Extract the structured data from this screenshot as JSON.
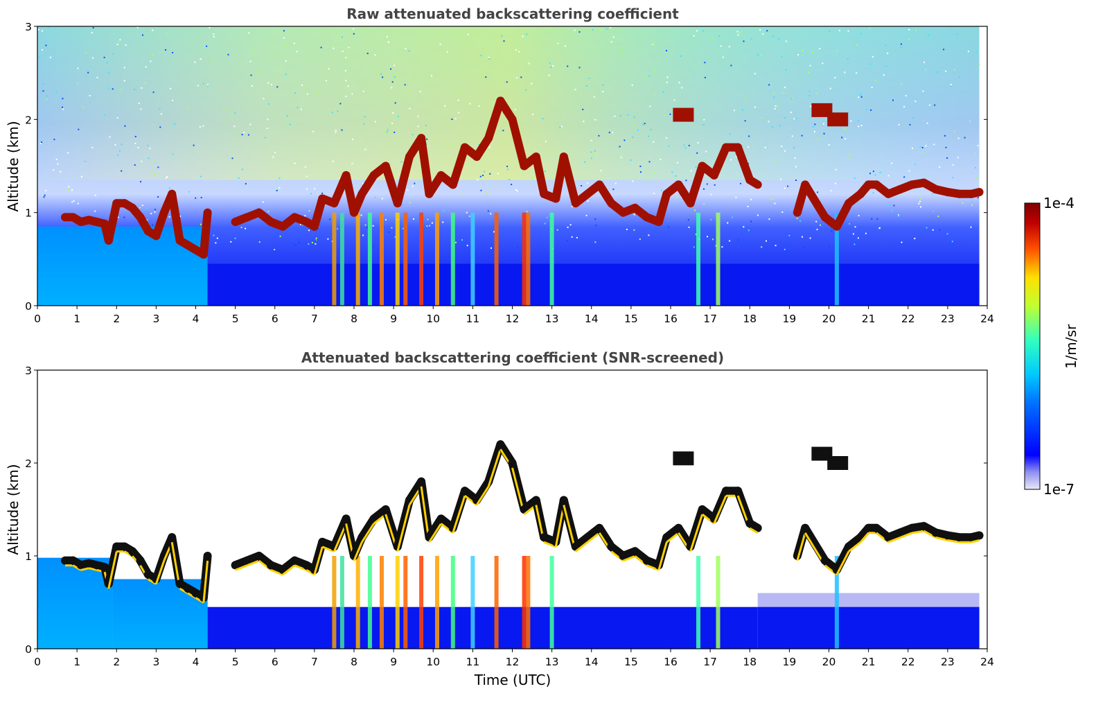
{
  "chart_data": [
    {
      "type": "heatmap",
      "title": "Raw attenuated backscattering coefficient",
      "xlabel": "",
      "ylabel": "Altitude (km)",
      "xlim": [
        0,
        24
      ],
      "ylim": [
        0,
        3
      ],
      "xticks": [
        "0",
        "1",
        "2",
        "3",
        "4",
        "5",
        "6",
        "7",
        "8",
        "9",
        "10",
        "11",
        "12",
        "13",
        "14",
        "15",
        "16",
        "17",
        "18",
        "19",
        "20",
        "21",
        "22",
        "23",
        "24"
      ],
      "yticks": [
        "0",
        "1",
        "2",
        "3"
      ],
      "screened": false,
      "cloud_base_km": [
        [
          0.7,
          0.95
        ],
        [
          0.9,
          0.95
        ],
        [
          1.1,
          0.9
        ],
        [
          1.3,
          0.92
        ],
        [
          1.5,
          0.9
        ],
        [
          1.7,
          0.88
        ],
        [
          1.8,
          0.7
        ],
        [
          2.0,
          1.1
        ],
        [
          2.2,
          1.1
        ],
        [
          2.4,
          1.05
        ],
        [
          2.6,
          0.95
        ],
        [
          2.8,
          0.8
        ],
        [
          3.0,
          0.75
        ],
        [
          3.2,
          1.0
        ],
        [
          3.4,
          1.2
        ],
        [
          3.6,
          0.7
        ],
        [
          3.8,
          0.65
        ],
        [
          4.0,
          0.6
        ],
        [
          4.2,
          0.55
        ],
        [
          4.3,
          1.0
        ],
        [
          5.0,
          0.9
        ],
        [
          5.3,
          0.95
        ],
        [
          5.6,
          1.0
        ],
        [
          5.9,
          0.9
        ],
        [
          6.2,
          0.85
        ],
        [
          6.5,
          0.95
        ],
        [
          6.8,
          0.9
        ],
        [
          7.0,
          0.85
        ],
        [
          7.2,
          1.15
        ],
        [
          7.5,
          1.1
        ],
        [
          7.8,
          1.4
        ],
        [
          8.0,
          1.0
        ],
        [
          8.2,
          1.2
        ],
        [
          8.5,
          1.4
        ],
        [
          8.8,
          1.5
        ],
        [
          9.1,
          1.1
        ],
        [
          9.4,
          1.6
        ],
        [
          9.7,
          1.8
        ],
        [
          9.9,
          1.2
        ],
        [
          10.2,
          1.4
        ],
        [
          10.5,
          1.3
        ],
        [
          10.8,
          1.7
        ],
        [
          11.1,
          1.6
        ],
        [
          11.4,
          1.8
        ],
        [
          11.7,
          2.2
        ],
        [
          12.0,
          2.0
        ],
        [
          12.3,
          1.5
        ],
        [
          12.6,
          1.6
        ],
        [
          12.8,
          1.2
        ],
        [
          13.1,
          1.15
        ],
        [
          13.3,
          1.6
        ],
        [
          13.6,
          1.1
        ],
        [
          13.9,
          1.2
        ],
        [
          14.2,
          1.3
        ],
        [
          14.5,
          1.1
        ],
        [
          14.8,
          1.0
        ],
        [
          15.1,
          1.05
        ],
        [
          15.4,
          0.95
        ],
        [
          15.7,
          0.9
        ],
        [
          15.9,
          1.2
        ],
        [
          16.2,
          1.3
        ],
        [
          16.5,
          1.1
        ],
        [
          16.8,
          1.5
        ],
        [
          17.1,
          1.4
        ],
        [
          17.4,
          1.7
        ],
        [
          17.7,
          1.7
        ],
        [
          18.0,
          1.35
        ],
        [
          18.2,
          1.3
        ],
        [
          19.2,
          1.0
        ],
        [
          19.4,
          1.3
        ],
        [
          19.9,
          0.95
        ],
        [
          20.2,
          0.85
        ],
        [
          20.5,
          1.1
        ],
        [
          20.8,
          1.2
        ],
        [
          21.0,
          1.3
        ],
        [
          21.2,
          1.3
        ],
        [
          21.5,
          1.2
        ],
        [
          21.8,
          1.25
        ],
        [
          22.1,
          1.3
        ],
        [
          22.4,
          1.32
        ],
        [
          22.7,
          1.25
        ],
        [
          23.0,
          1.22
        ],
        [
          23.3,
          1.2
        ],
        [
          23.6,
          1.2
        ],
        [
          23.8,
          1.22
        ]
      ]
    },
    {
      "type": "heatmap",
      "title": "Attenuated backscattering coefficient (SNR-screened)",
      "xlabel": "Time (UTC)",
      "ylabel": "Altitude (km)",
      "xlim": [
        0,
        24
      ],
      "ylim": [
        0,
        3
      ],
      "xticks": [
        "0",
        "1",
        "2",
        "3",
        "4",
        "5",
        "6",
        "7",
        "8",
        "9",
        "10",
        "11",
        "12",
        "13",
        "14",
        "15",
        "16",
        "17",
        "18",
        "19",
        "20",
        "21",
        "22",
        "23",
        "24"
      ],
      "yticks": [
        "0",
        "1",
        "2",
        "3"
      ],
      "screened": true
    }
  ],
  "colorbar": {
    "label": "1/m/sr",
    "max_label": "1e-4",
    "min_label": "1e-7",
    "scale": "log",
    "colormap": "jet",
    "low_end_color": "#e8e8f8",
    "high_end_color": "#800000"
  }
}
